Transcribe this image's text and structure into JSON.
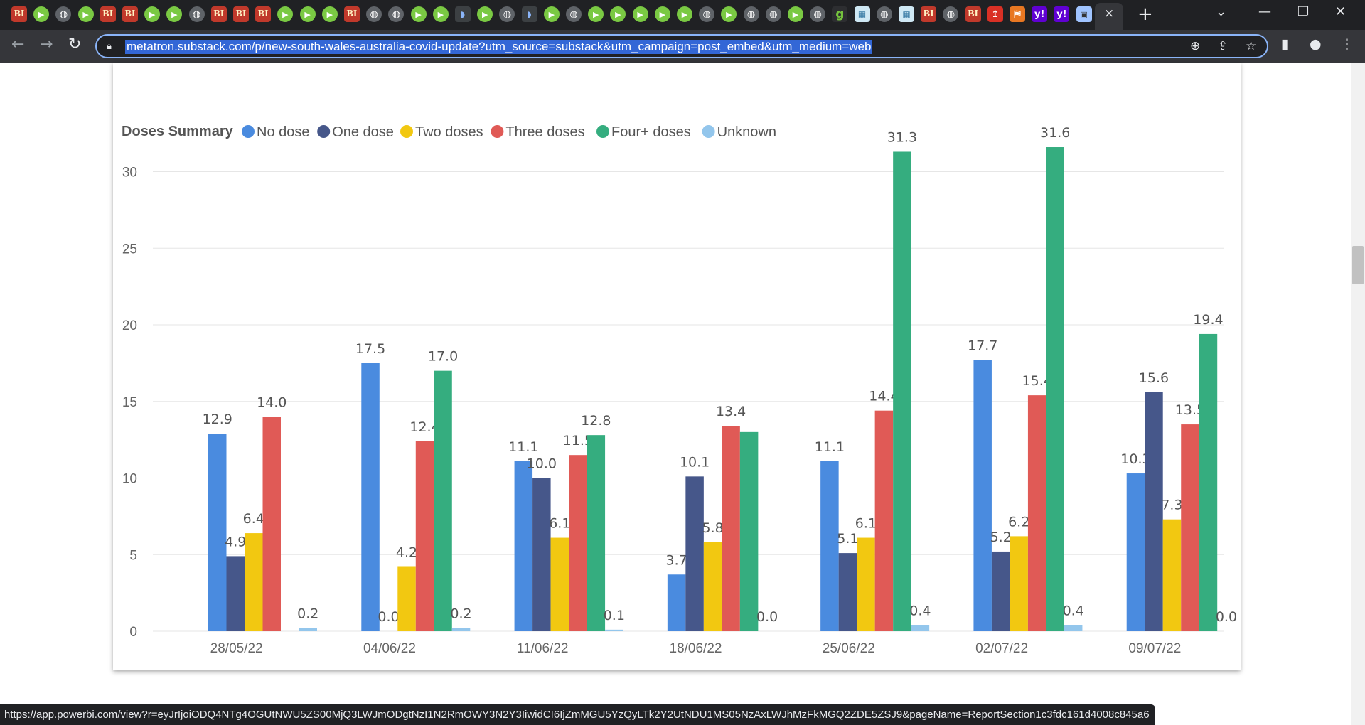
{
  "browser": {
    "tabs": [
      {
        "icon": "bi"
      },
      {
        "icon": "play"
      },
      {
        "icon": "globe"
      },
      {
        "icon": "play"
      },
      {
        "icon": "bi"
      },
      {
        "icon": "bi"
      },
      {
        "icon": "play"
      },
      {
        "icon": "play"
      },
      {
        "icon": "globe"
      },
      {
        "icon": "bi"
      },
      {
        "icon": "bi"
      },
      {
        "icon": "bi"
      },
      {
        "icon": "play"
      },
      {
        "icon": "play"
      },
      {
        "icon": "play"
      },
      {
        "icon": "bi"
      },
      {
        "icon": "globe"
      },
      {
        "icon": "globe"
      },
      {
        "icon": "play"
      },
      {
        "icon": "play"
      },
      {
        "icon": "dart"
      },
      {
        "icon": "play"
      },
      {
        "icon": "globe"
      },
      {
        "icon": "dart"
      },
      {
        "icon": "play"
      },
      {
        "icon": "globe"
      },
      {
        "icon": "play"
      },
      {
        "icon": "play"
      },
      {
        "icon": "play"
      },
      {
        "icon": "play"
      },
      {
        "icon": "play"
      },
      {
        "icon": "globe"
      },
      {
        "icon": "play"
      },
      {
        "icon": "globe"
      },
      {
        "icon": "globe"
      },
      {
        "icon": "play"
      },
      {
        "icon": "globe"
      },
      {
        "icon": "g"
      },
      {
        "icon": "grid"
      },
      {
        "icon": "globe"
      },
      {
        "icon": "grid"
      },
      {
        "icon": "bi"
      },
      {
        "icon": "globe"
      },
      {
        "icon": "bi"
      },
      {
        "icon": "ms"
      },
      {
        "icon": "bm"
      },
      {
        "icon": "y"
      },
      {
        "icon": "y"
      },
      {
        "icon": "img"
      }
    ],
    "active_tab_close": "×",
    "new_tab": "+",
    "url": "metatron.substack.com/p/new-south-wales-australia-covid-update?utm_source=substack&utm_campaign=post_embed&utm_medium=web",
    "status_url": "https://app.powerbi.com/view?r=eyJrIjoiODQ4NTg4OGUtNWU5ZS00MjQ3LWJmODgtNzI1N2RmOWY3N2Y3IiwidCI6IjZmMGU5YzQyLTk2Y2UtNDU1MS05NzAxLWJhMzFkMGQ2ZDE5ZSJ9&pageName=ReportSection1c3fdc161d4008c845a6",
    "icons": {
      "back": "back-arrow-icon",
      "forward": "forward-arrow-icon",
      "reload": "reload-icon",
      "lock": "lock-icon",
      "zoom": "zoom-icon",
      "share": "share-icon",
      "star": "star-icon",
      "sidepanel": "side-panel-icon",
      "profile": "profile-icon",
      "menu": "kebab-menu-icon"
    }
  },
  "chart_data": {
    "type": "bar",
    "legend_title": "Doses Summary",
    "legend_position": "top-left",
    "grid": true,
    "categories": [
      "28/05/22",
      "04/06/22",
      "11/06/22",
      "18/06/22",
      "25/06/22",
      "02/07/22",
      "09/07/22"
    ],
    "ylim": [
      0,
      35
    ],
    "yticks": [
      0,
      5,
      10,
      15,
      20,
      25,
      30
    ],
    "series": [
      {
        "name": "No dose",
        "color": "#4a8bdf",
        "values": [
          12.9,
          17.5,
          11.1,
          3.7,
          11.1,
          17.7,
          10.3
        ]
      },
      {
        "name": "One dose",
        "color": "#46578a",
        "values": [
          4.9,
          0.0,
          10.0,
          10.1,
          5.1,
          5.2,
          15.6
        ]
      },
      {
        "name": "Two doses",
        "color": "#f2c811",
        "values": [
          6.4,
          4.2,
          6.1,
          5.8,
          6.1,
          6.2,
          7.3
        ]
      },
      {
        "name": "Three doses",
        "color": "#e05a56",
        "values": [
          14.0,
          12.4,
          11.5,
          13.4,
          14.4,
          15.4,
          13.5
        ]
      },
      {
        "name": "Four+ doses",
        "color": "#35ad7f",
        "values": [
          null,
          17.0,
          12.8,
          13.0,
          31.3,
          31.6,
          19.4
        ]
      },
      {
        "name": "Unknown",
        "color": "#93c6ec",
        "values": [
          0.2,
          0.2,
          0.1,
          0.0,
          0.4,
          0.4,
          0.0
        ]
      }
    ],
    "data_labels": [
      [
        "12.9",
        "4.9",
        "6.4",
        "14.0",
        null,
        "0.2"
      ],
      [
        "17.5",
        "0.0",
        "4.2",
        "12.4",
        "17.0",
        "0.2"
      ],
      [
        "11.1",
        "10.0",
        "6.1",
        "11.5",
        "12.8",
        "0.1"
      ],
      [
        "3.7",
        "10.1",
        "5.8",
        "13.4",
        null,
        "0.0"
      ],
      [
        "11.1",
        "5.1",
        "6.1",
        "14.4",
        "31.3",
        "0.4"
      ],
      [
        "17.7",
        "5.2",
        "6.2",
        "15.4",
        "31.6",
        "0.4"
      ],
      [
        "10.3",
        "15.6",
        "7.3",
        "13.5",
        "19.4",
        "0.0"
      ]
    ]
  }
}
